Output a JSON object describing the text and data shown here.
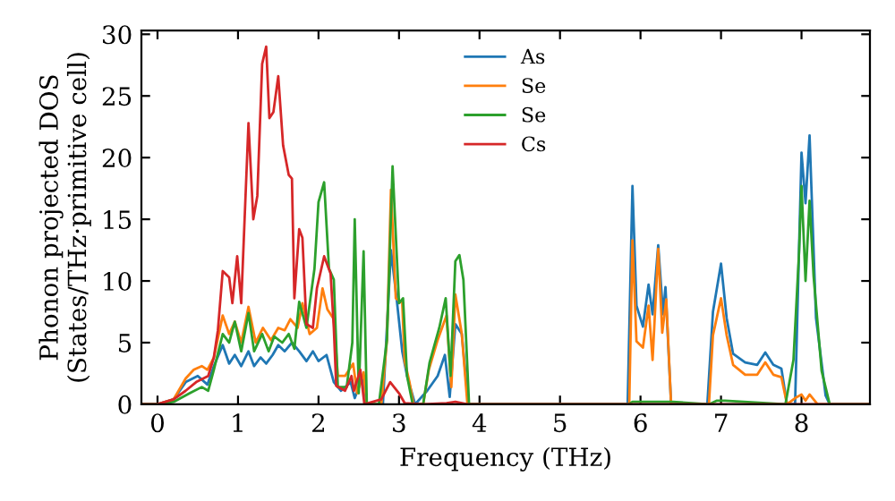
{
  "chart_data": {
    "type": "line",
    "xlabel": "Frequency (THz)",
    "ylabel": "Phonon projected DOS\n(States/THz·primitive cell)",
    "xlim": [
      -0.2,
      8.85
    ],
    "ylim": [
      0,
      30.3
    ],
    "xticks": [
      0,
      1,
      2,
      3,
      4,
      5,
      6,
      7,
      8
    ],
    "yticks": [
      0,
      5,
      10,
      15,
      20,
      25,
      30
    ],
    "grid": false,
    "legend": "top",
    "marker": "none",
    "line_style": "solid",
    "series": [
      {
        "name": "As",
        "color": "#1f77b4",
        "x": [
          -0.2,
          0,
          0.2,
          0.35,
          0.5,
          0.62,
          0.7,
          0.81,
          0.89,
          0.96,
          1.04,
          1.13,
          1.2,
          1.28,
          1.35,
          1.43,
          1.5,
          1.58,
          1.67,
          1.76,
          1.85,
          1.93,
          2.0,
          2.1,
          2.19,
          2.28,
          2.4,
          2.45,
          2.55,
          2.6,
          2.8,
          2.9,
          2.97,
          3.04,
          3.1,
          3.2,
          3.35,
          3.48,
          3.57,
          3.63,
          3.7,
          3.78,
          3.86,
          5.84,
          5.9,
          5.95,
          6.03,
          6.1,
          6.15,
          6.22,
          6.28,
          6.31,
          6.38,
          6.83,
          6.9,
          7.0,
          7.07,
          7.15,
          7.3,
          7.45,
          7.55,
          7.65,
          7.75,
          7.82,
          7.92,
          8.0,
          8.05,
          8.1,
          8.18,
          8.3,
          8.35,
          8.85
        ],
        "values": [
          0,
          0,
          0.4,
          1.8,
          2.3,
          1.6,
          3.1,
          4.8,
          3.3,
          4,
          3.1,
          4.3,
          3.1,
          3.8,
          3.3,
          4,
          4.8,
          4.3,
          5,
          4.3,
          3.5,
          4.3,
          3.5,
          4,
          1.8,
          1.1,
          1.8,
          0.5,
          2.3,
          0,
          0,
          12.5,
          8.6,
          4.3,
          2.3,
          0,
          1.1,
          2.3,
          4,
          0.6,
          6.5,
          5.7,
          0,
          0,
          17.7,
          8,
          6.3,
          9.7,
          7.3,
          12.9,
          7.3,
          9.5,
          0,
          0,
          7.5,
          11.4,
          7,
          4.1,
          3.4,
          3.2,
          4.2,
          3.2,
          2.9,
          0,
          0,
          20.4,
          16.3,
          21.8,
          7,
          0.7,
          0,
          0
        ]
      },
      {
        "name": "Se",
        "color": "#ff7f0e",
        "x": [
          -0.2,
          0,
          0.2,
          0.35,
          0.45,
          0.55,
          0.62,
          0.7,
          0.81,
          0.89,
          0.96,
          1.04,
          1.13,
          1.22,
          1.31,
          1.41,
          1.5,
          1.58,
          1.65,
          1.74,
          1.8,
          1.89,
          1.98,
          2.05,
          2.11,
          2.19,
          2.24,
          2.33,
          2.43,
          2.48,
          2.56,
          2.6,
          2.78,
          2.85,
          2.9,
          2.96,
          3.04,
          3.07,
          3.13,
          3.18,
          3.3,
          3.37,
          3.48,
          3.59,
          3.65,
          3.7,
          3.78,
          3.85,
          5.86,
          5.9,
          5.95,
          6.03,
          6.1,
          6.15,
          6.22,
          6.27,
          6.32,
          6.38,
          6.85,
          6.9,
          7.0,
          7.07,
          7.15,
          7.3,
          7.45,
          7.55,
          7.65,
          7.75,
          7.82,
          7.92,
          8.0,
          8.05,
          8.1,
          8.2,
          8.85
        ],
        "values": [
          0,
          0,
          0.4,
          2.1,
          2.8,
          3.1,
          2.8,
          3.8,
          7.2,
          5.7,
          6.7,
          5,
          7.9,
          5,
          6.2,
          5.2,
          6.2,
          6,
          6.9,
          6.2,
          8.2,
          5.7,
          6.2,
          9.4,
          7.7,
          6.9,
          2.3,
          2.3,
          3.3,
          0.9,
          2.6,
          0,
          0,
          5.2,
          17.4,
          8.6,
          8.2,
          3.5,
          1.8,
          0,
          0,
          2.8,
          5.2,
          7.2,
          1.4,
          8.9,
          5.7,
          0,
          0,
          13.3,
          5.1,
          4.6,
          8,
          3.6,
          12.6,
          5.8,
          8.5,
          0,
          0,
          5.6,
          8.6,
          5.6,
          3.2,
          2.4,
          2.4,
          3.4,
          2.4,
          2.2,
          0,
          0.5,
          0.8,
          0.3,
          0.8,
          0,
          0
        ]
      },
      {
        "name": "Se",
        "color": "#2ca02c",
        "x": [
          -0.2,
          0,
          0.2,
          0.4,
          0.55,
          0.63,
          0.7,
          0.81,
          0.89,
          0.96,
          1.04,
          1.13,
          1.2,
          1.3,
          1.38,
          1.45,
          1.55,
          1.63,
          1.7,
          1.76,
          1.85,
          1.95,
          2.0,
          2.07,
          2.13,
          2.19,
          2.24,
          2.35,
          2.42,
          2.45,
          2.5,
          2.56,
          2.6,
          2.75,
          2.85,
          2.92,
          3.0,
          3.05,
          3.1,
          3.17,
          3.3,
          3.38,
          3.5,
          3.58,
          3.64,
          3.7,
          3.75,
          3.8,
          3.87,
          5.85,
          5.9,
          6.4,
          6.85,
          6.95,
          7.05,
          7.8,
          7.9,
          7.97,
          8.0,
          8.05,
          8.1,
          8.15,
          8.25,
          8.35,
          8.85
        ],
        "values": [
          0,
          0,
          0.2,
          0.9,
          1.4,
          1.1,
          2.8,
          5.7,
          5,
          6.7,
          4.3,
          7.4,
          4.3,
          5.7,
          4.3,
          5.5,
          5,
          5.7,
          4.5,
          8.3,
          6.2,
          11,
          16.4,
          18,
          11,
          10.1,
          1.4,
          1.4,
          5,
          15,
          0.9,
          12.4,
          0,
          0,
          5.2,
          19.3,
          8.2,
          8.6,
          2.3,
          0,
          0,
          3.4,
          6.2,
          8.6,
          2.3,
          11.6,
          12.1,
          10.1,
          0,
          0,
          0.2,
          0.2,
          0,
          0.3,
          0.3,
          0,
          3.6,
          12.4,
          17.7,
          10,
          16.5,
          10.4,
          2.7,
          0,
          0
        ]
      },
      {
        "name": "Cs",
        "color": "#d62728",
        "x": [
          -0.2,
          0,
          0.2,
          0.35,
          0.48,
          0.63,
          0.7,
          0.75,
          0.81,
          0.89,
          0.93,
          0.99,
          1.04,
          1.13,
          1.19,
          1.24,
          1.3,
          1.35,
          1.39,
          1.44,
          1.5,
          1.56,
          1.63,
          1.67,
          1.7,
          1.76,
          1.8,
          1.85,
          1.93,
          1.98,
          2.07,
          2.15,
          2.19,
          2.22,
          2.33,
          2.41,
          2.44,
          2.52,
          2.57,
          2.78,
          2.89,
          3.0,
          3.07,
          3.3,
          3.59,
          3.7,
          3.85,
          8.85
        ],
        "values": [
          0,
          0,
          0.4,
          1.1,
          1.8,
          2.3,
          3.8,
          6,
          10.8,
          10.3,
          8.2,
          12,
          8.2,
          22.8,
          15,
          16.9,
          27.6,
          29,
          23.2,
          23.7,
          26.6,
          21,
          18.6,
          18.3,
          8.6,
          14.2,
          13.5,
          6.5,
          6.2,
          9.4,
          12,
          10.6,
          6.2,
          1.5,
          1.1,
          2.3,
          1.1,
          2.8,
          0,
          0.4,
          1.8,
          0.9,
          0.1,
          0,
          0.1,
          0.2,
          0,
          0
        ]
      }
    ]
  }
}
